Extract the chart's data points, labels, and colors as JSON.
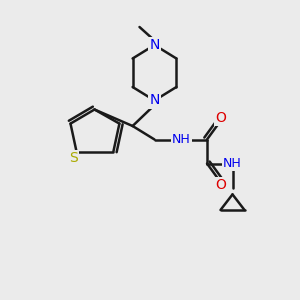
{
  "bg_color": "#ebebeb",
  "bond_color": "#1a1a1a",
  "N_color": "#0000ee",
  "O_color": "#dd0000",
  "S_color": "#aaaa00",
  "line_width": 1.8,
  "figsize": [
    3.0,
    3.0
  ],
  "dpi": 100,
  "xlim": [
    0,
    10
  ],
  "ylim": [
    0,
    10
  ]
}
